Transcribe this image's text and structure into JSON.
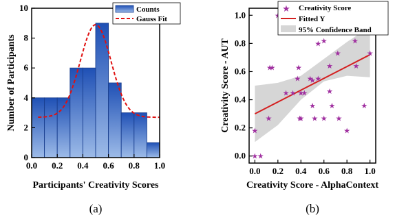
{
  "chart_data": [
    {
      "type": "bar",
      "panel": "(a)",
      "xlabel": "Participants' Creativity Scores",
      "ylabel": "Number of Participants",
      "xlim": [
        0,
        1
      ],
      "ylim": [
        0,
        10
      ],
      "xticks": [
        "0.0",
        "0.2",
        "0.4",
        "0.6",
        "0.8",
        "1.0"
      ],
      "yticks": [
        "0",
        "2",
        "4",
        "6",
        "8",
        "10"
      ],
      "bins": [
        {
          "start": 0.0,
          "end": 0.1,
          "count": 4
        },
        {
          "start": 0.1,
          "end": 0.2,
          "count": 4
        },
        {
          "start": 0.2,
          "end": 0.3,
          "count": 4
        },
        {
          "start": 0.3,
          "end": 0.4,
          "count": 6
        },
        {
          "start": 0.4,
          "end": 0.5,
          "count": 6
        },
        {
          "start": 0.5,
          "end": 0.6,
          "count": 9
        },
        {
          "start": 0.6,
          "end": 0.7,
          "count": 5
        },
        {
          "start": 0.7,
          "end": 0.8,
          "count": 3
        },
        {
          "start": 0.8,
          "end": 0.9,
          "count": 3
        },
        {
          "start": 0.9,
          "end": 1.0,
          "count": 1
        }
      ],
      "series": [
        {
          "name": "Counts",
          "kind": "histogram",
          "color": "#2e5fb3"
        },
        {
          "name": "Gauss Fit",
          "kind": "line",
          "style": "dashed",
          "color": "#e01010",
          "params": {
            "baseline": 2.7,
            "amplitude": 6.2,
            "center": 0.5,
            "sigma": 0.12
          }
        }
      ],
      "legend": "top-right"
    },
    {
      "type": "scatter",
      "panel": "(b)",
      "xlabel": "Creativity Score - AlphaContext",
      "ylabel": "Creativity Score - AUT",
      "xlim": [
        0,
        1
      ],
      "ylim": [
        0,
        1
      ],
      "xticks": [
        "0.0",
        "0.2",
        "0.4",
        "0.6",
        "0.8",
        "1.0"
      ],
      "yticks": [
        "0.0",
        "0.2",
        "0.4",
        "0.6",
        "0.8",
        "1.0"
      ],
      "points": [
        [
          0.0,
          0.0
        ],
        [
          0.0,
          0.18
        ],
        [
          0.05,
          0.0
        ],
        [
          0.12,
          0.27
        ],
        [
          0.13,
          0.63
        ],
        [
          0.15,
          0.63
        ],
        [
          0.2,
          1.0
        ],
        [
          0.27,
          0.45
        ],
        [
          0.33,
          0.45
        ],
        [
          0.37,
          0.55
        ],
        [
          0.38,
          0.63
        ],
        [
          0.39,
          0.27
        ],
        [
          0.4,
          0.27
        ],
        [
          0.4,
          0.45
        ],
        [
          0.43,
          0.45
        ],
        [
          0.47,
          0.91
        ],
        [
          0.48,
          0.55
        ],
        [
          0.5,
          0.36
        ],
        [
          0.5,
          0.54
        ],
        [
          0.52,
          0.27
        ],
        [
          0.55,
          0.8
        ],
        [
          0.55,
          0.55
        ],
        [
          0.58,
          0.91
        ],
        [
          0.6,
          0.82
        ],
        [
          0.6,
          0.27
        ],
        [
          0.65,
          0.64
        ],
        [
          0.65,
          0.46
        ],
        [
          0.67,
          0.36
        ],
        [
          0.68,
          1.0
        ],
        [
          0.72,
          0.73
        ],
        [
          0.73,
          0.27
        ],
        [
          0.8,
          0.18
        ],
        [
          0.87,
          0.82
        ],
        [
          0.88,
          0.64
        ],
        [
          0.95,
          0.36
        ],
        [
          1.0,
          0.73
        ]
      ],
      "fit": {
        "x": [
          0,
          1
        ],
        "y": [
          0.3,
          0.72
        ]
      },
      "band": {
        "x": [
          0,
          0.2,
          0.4,
          0.6,
          0.8,
          1.0
        ],
        "lower": [
          0.1,
          0.22,
          0.4,
          0.53,
          0.57,
          0.56
        ],
        "upper": [
          0.5,
          0.52,
          0.57,
          0.69,
          0.81,
          0.92
        ]
      },
      "series": [
        {
          "name": "Creativity Score",
          "kind": "scatter",
          "marker": "star",
          "color": "#a030a0"
        },
        {
          "name": "Fitted Y",
          "kind": "line",
          "color": "#d42020"
        },
        {
          "name": "95% Confidence Band",
          "kind": "band",
          "color": "#d0d0d0"
        }
      ],
      "legend": "top-right"
    }
  ]
}
